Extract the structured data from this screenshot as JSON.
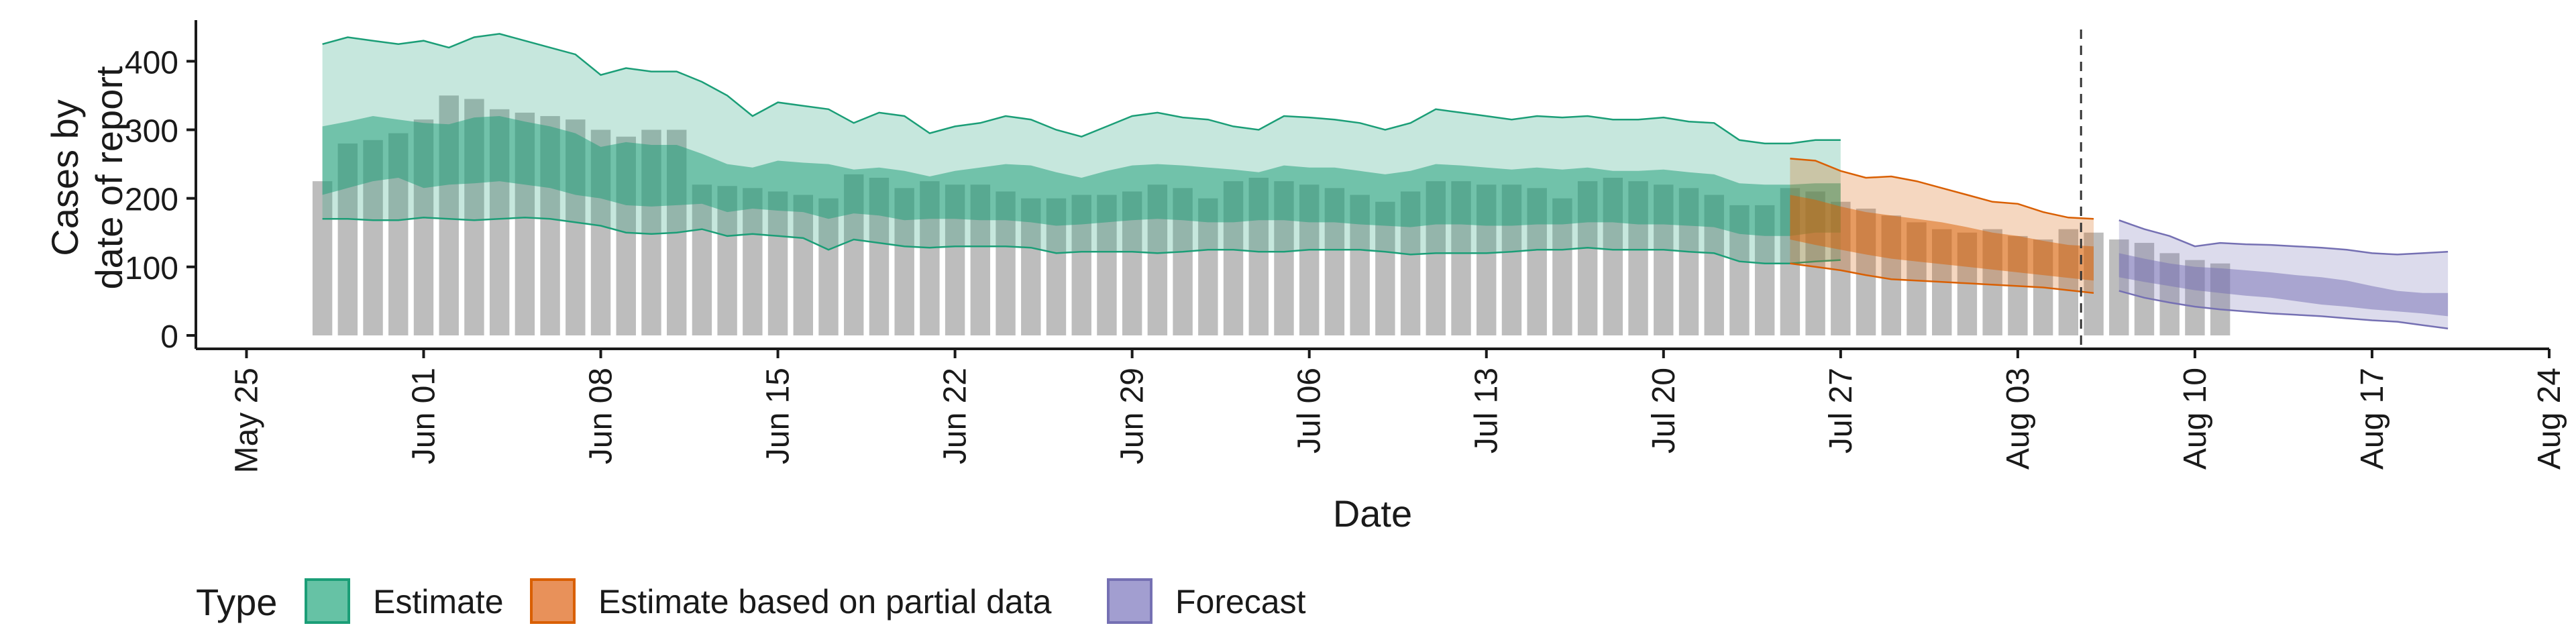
{
  "chart_data": {
    "type": "area",
    "xlabel": "Date",
    "ylabel": [
      "Cases by",
      "date of report"
    ],
    "ylim": [
      0,
      460
    ],
    "xlim": [
      "2020-05-23",
      "2020-08-24"
    ],
    "x_ticks": [
      {
        "date": "2020-05-25",
        "label": "May 25"
      },
      {
        "date": "2020-06-01",
        "label": "Jun 01"
      },
      {
        "date": "2020-06-08",
        "label": "Jun 08"
      },
      {
        "date": "2020-06-15",
        "label": "Jun 15"
      },
      {
        "date": "2020-06-22",
        "label": "Jun 22"
      },
      {
        "date": "2020-06-29",
        "label": "Jun 29"
      },
      {
        "date": "2020-07-06",
        "label": "Jul 06"
      },
      {
        "date": "2020-07-13",
        "label": "Jul 13"
      },
      {
        "date": "2020-07-20",
        "label": "Jul 20"
      },
      {
        "date": "2020-07-27",
        "label": "Jul 27"
      },
      {
        "date": "2020-08-03",
        "label": "Aug 03"
      },
      {
        "date": "2020-08-10",
        "label": "Aug 10"
      },
      {
        "date": "2020-08-17",
        "label": "Aug 17"
      },
      {
        "date": "2020-08-24",
        "label": "Aug 24"
      }
    ],
    "y_ticks": [
      0,
      100,
      200,
      300,
      400
    ],
    "grid": false,
    "forecast_date": "2020-08-06",
    "legend": {
      "title": "Type",
      "position": "bottom",
      "items": [
        {
          "label": "Estimate",
          "fill": "#66c2a5",
          "stroke": "#1b9e77"
        },
        {
          "label": "Estimate based on partial data",
          "fill": "#e8915a",
          "stroke": "#d95f02"
        },
        {
          "label": "Forecast",
          "fill": "#a29ed0",
          "stroke": "#7570b3"
        }
      ]
    },
    "colors": {
      "bars": "#bdbdbd",
      "estimate": "#1b9e77",
      "partial": "#d95f02",
      "forecast": "#7570b3"
    },
    "reported_cases": {
      "start_date": "2020-05-28",
      "values": [
        225,
        280,
        285,
        295,
        315,
        350,
        345,
        330,
        325,
        320,
        315,
        300,
        290,
        300,
        300,
        220,
        218,
        215,
        210,
        205,
        200,
        235,
        230,
        215,
        225,
        220,
        220,
        210,
        200,
        200,
        205,
        205,
        210,
        220,
        215,
        200,
        225,
        230,
        225,
        220,
        215,
        205,
        195,
        210,
        225,
        225,
        220,
        220,
        215,
        200,
        225,
        230,
        225,
        220,
        215,
        205,
        190,
        190,
        215,
        210,
        195,
        185,
        175,
        165,
        155,
        150,
        155,
        145,
        140,
        155,
        150,
        140,
        135,
        120,
        110,
        105
      ]
    },
    "series": [
      {
        "name": "Estimate",
        "start_date": "2020-05-28",
        "lower_90": [
          170,
          170,
          168,
          168,
          172,
          170,
          168,
          170,
          172,
          170,
          165,
          160,
          150,
          148,
          150,
          155,
          145,
          148,
          145,
          142,
          125,
          140,
          135,
          130,
          128,
          130,
          130,
          130,
          128,
          120,
          122,
          122,
          122,
          120,
          122,
          125,
          125,
          122,
          122,
          125,
          125,
          125,
          122,
          118,
          120,
          120,
          120,
          122,
          125,
          125,
          128,
          125,
          125,
          125,
          122,
          120,
          108,
          105,
          105,
          108,
          110
        ],
        "upper_90": [
          425,
          435,
          430,
          425,
          430,
          420,
          435,
          440,
          430,
          420,
          410,
          380,
          390,
          385,
          385,
          370,
          350,
          320,
          340,
          335,
          330,
          310,
          325,
          320,
          295,
          305,
          310,
          320,
          315,
          300,
          290,
          305,
          320,
          325,
          318,
          315,
          305,
          300,
          320,
          318,
          315,
          310,
          300,
          310,
          330,
          325,
          320,
          315,
          320,
          318,
          320,
          315,
          315,
          318,
          312,
          310,
          285,
          280,
          280,
          285,
          285
        ],
        "lower_50": [
          205,
          215,
          225,
          230,
          215,
          220,
          222,
          225,
          220,
          215,
          205,
          200,
          190,
          188,
          190,
          192,
          180,
          185,
          182,
          180,
          170,
          178,
          175,
          168,
          170,
          170,
          168,
          168,
          165,
          160,
          162,
          165,
          168,
          170,
          168,
          165,
          165,
          168,
          168,
          165,
          165,
          162,
          160,
          158,
          162,
          162,
          160,
          160,
          162,
          162,
          165,
          165,
          162,
          162,
          160,
          158,
          148,
          145,
          145,
          150,
          150
        ],
        "upper_50": [
          305,
          312,
          320,
          315,
          310,
          308,
          318,
          320,
          312,
          305,
          295,
          275,
          282,
          278,
          278,
          265,
          250,
          245,
          255,
          252,
          250,
          242,
          245,
          240,
          232,
          240,
          245,
          250,
          248,
          238,
          230,
          240,
          248,
          250,
          248,
          245,
          242,
          238,
          248,
          245,
          245,
          240,
          235,
          240,
          250,
          248,
          245,
          242,
          245,
          242,
          245,
          240,
          240,
          242,
          238,
          235,
          222,
          220,
          220,
          222,
          222
        ]
      },
      {
        "name": "Estimate based on partial data",
        "start_date": "2020-07-25",
        "lower_90": [
          105,
          100,
          95,
          88,
          82,
          80,
          78,
          76,
          74,
          72,
          70,
          66,
          62
        ],
        "upper_90": [
          258,
          255,
          240,
          230,
          232,
          225,
          215,
          205,
          195,
          192,
          180,
          172,
          170
        ],
        "lower_50": [
          140,
          132,
          125,
          118,
          112,
          108,
          104,
          100,
          96,
          92,
          88,
          84,
          80
        ],
        "upper_50": [
          205,
          198,
          188,
          180,
          175,
          170,
          165,
          158,
          150,
          145,
          138,
          132,
          130
        ]
      },
      {
        "name": "Forecast",
        "start_date": "2020-08-07",
        "lower_90": [
          65,
          55,
          48,
          42,
          38,
          35,
          32,
          30,
          28,
          25,
          22,
          20,
          15,
          10
        ],
        "upper_90": [
          168,
          155,
          145,
          130,
          135,
          133,
          132,
          130,
          128,
          125,
          120,
          118,
          120,
          122
        ],
        "lower_50": [
          85,
          78,
          72,
          66,
          62,
          58,
          55,
          50,
          45,
          42,
          38,
          35,
          32,
          28
        ],
        "upper_50": [
          120,
          112,
          105,
          100,
          98,
          95,
          92,
          88,
          85,
          80,
          72,
          65,
          62,
          62
        ]
      }
    ]
  }
}
